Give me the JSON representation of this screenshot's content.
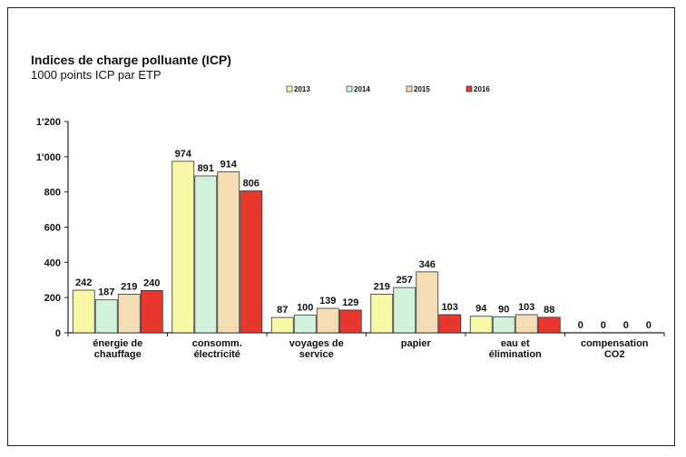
{
  "title": "Indices de charge polluante (ICP)",
  "subtitle": "1000 points ICP par ETP",
  "chart_data": {
    "type": "bar",
    "title": "Indices de charge polluante (ICP)",
    "subtitle": "1000 points ICP par ETP",
    "categories": [
      [
        "énergie de",
        "chauffage"
      ],
      [
        "consomm.",
        "électricité"
      ],
      [
        "voyages de",
        "service"
      ],
      [
        "papier"
      ],
      [
        "eau et",
        "élimination"
      ],
      [
        "compensation",
        "CO2"
      ]
    ],
    "series": [
      {
        "name": "2013",
        "color": "#f7f7a6",
        "values": [
          242,
          974,
          87,
          219,
          94,
          0
        ]
      },
      {
        "name": "2014",
        "color": "#d2f2dc",
        "values": [
          187,
          891,
          100,
          257,
          90,
          0
        ]
      },
      {
        "name": "2015",
        "color": "#f4ddb4",
        "values": [
          219,
          914,
          139,
          346,
          103,
          0
        ]
      },
      {
        "name": "2016",
        "color": "#e8382e",
        "values": [
          240,
          806,
          129,
          103,
          88,
          0
        ]
      }
    ],
    "y_ticks": [
      "0",
      "200",
      "400",
      "600",
      "800",
      "1'000",
      "1'200"
    ],
    "ylim": [
      0,
      1200
    ],
    "grid": false,
    "legend_position": "top"
  }
}
